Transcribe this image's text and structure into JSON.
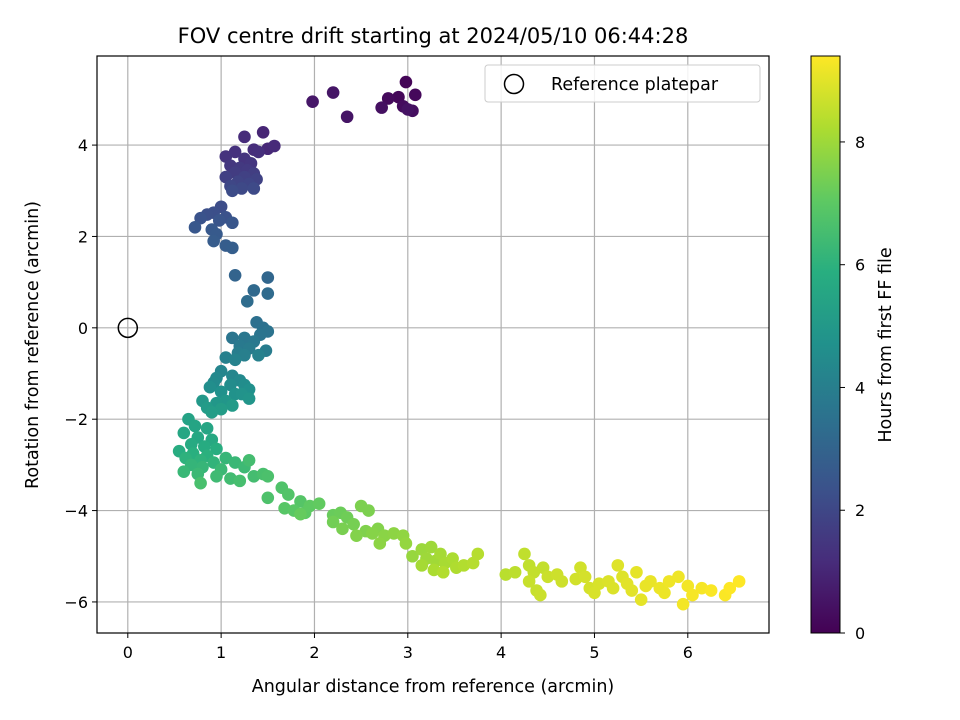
{
  "chart_data": {
    "type": "scatter",
    "title": "FOV centre drift starting at 2024/05/10 06:44:28",
    "xlabel": "Angular distance from reference (arcmin)",
    "ylabel": "Rotation from reference (arcmin)",
    "xlim": [
      -0.33,
      6.87
    ],
    "ylim": [
      -6.68,
      5.95
    ],
    "x_ticks": [
      0,
      1,
      2,
      3,
      4,
      5,
      6
    ],
    "y_ticks": [
      -6,
      -4,
      -2,
      0,
      2,
      4
    ],
    "grid": true,
    "legend": {
      "position": "top-right",
      "entries": [
        "Reference platepar"
      ]
    },
    "reference_point": {
      "x": 0,
      "y": 0
    },
    "colorbar": {
      "label": "Hours from first FF file",
      "colormap": "viridis",
      "range": [
        0,
        9.4
      ],
      "ticks": [
        0,
        2,
        4,
        6,
        8
      ]
    },
    "points": [
      [
        2.98,
        5.38,
        0.1
      ],
      [
        2.9,
        5.05,
        0.15
      ],
      [
        3.08,
        5.1,
        0.2
      ],
      [
        2.79,
        5.02,
        0.25
      ],
      [
        2.95,
        4.85,
        0.3
      ],
      [
        3.05,
        4.75,
        0.35
      ],
      [
        2.72,
        4.82,
        0.4
      ],
      [
        3.0,
        4.78,
        0.45
      ],
      [
        2.35,
        4.62,
        0.5
      ],
      [
        2.2,
        5.15,
        0.55
      ],
      [
        1.98,
        4.95,
        0.6
      ],
      [
        1.45,
        4.28,
        1.0
      ],
      [
        1.5,
        3.92,
        1.05
      ],
      [
        1.57,
        3.98,
        1.1
      ],
      [
        1.25,
        4.18,
        1.15
      ],
      [
        1.35,
        3.9,
        1.2
      ],
      [
        1.4,
        3.85,
        1.25
      ],
      [
        1.15,
        3.85,
        1.3
      ],
      [
        1.05,
        3.75,
        1.35
      ],
      [
        1.25,
        3.7,
        1.4
      ],
      [
        1.32,
        3.6,
        1.45
      ],
      [
        1.1,
        3.55,
        1.5
      ],
      [
        1.2,
        3.5,
        1.55
      ],
      [
        1.28,
        3.45,
        1.6
      ],
      [
        1.15,
        3.4,
        1.65
      ],
      [
        1.35,
        3.38,
        1.7
      ],
      [
        1.05,
        3.3,
        1.75
      ],
      [
        1.25,
        3.3,
        1.8
      ],
      [
        1.38,
        3.25,
        1.85
      ],
      [
        1.18,
        3.2,
        1.9
      ],
      [
        1.3,
        3.15,
        1.95
      ],
      [
        1.1,
        3.1,
        2.0
      ],
      [
        1.22,
        3.05,
        2.05
      ],
      [
        1.35,
        3.05,
        2.1
      ],
      [
        1.12,
        3.0,
        2.15
      ],
      [
        1.0,
        2.65,
        2.2
      ],
      [
        0.92,
        2.52,
        2.25
      ],
      [
        0.85,
        2.48,
        2.3
      ],
      [
        1.05,
        2.42,
        2.35
      ],
      [
        0.78,
        2.4,
        2.4
      ],
      [
        0.98,
        2.35,
        2.45
      ],
      [
        1.12,
        2.3,
        2.5
      ],
      [
        0.72,
        2.2,
        2.55
      ],
      [
        0.9,
        2.15,
        2.6
      ],
      [
        0.95,
        2.05,
        2.65
      ],
      [
        0.92,
        1.9,
        2.7
      ],
      [
        1.05,
        1.8,
        2.75
      ],
      [
        1.12,
        1.75,
        2.8
      ],
      [
        1.15,
        1.15,
        3.0
      ],
      [
        1.5,
        1.1,
        3.1
      ],
      [
        1.35,
        0.82,
        3.2
      ],
      [
        1.5,
        0.75,
        3.25
      ],
      [
        1.28,
        0.58,
        3.3
      ],
      [
        1.38,
        0.12,
        3.45
      ],
      [
        1.45,
        0.0,
        3.5
      ],
      [
        1.5,
        -0.08,
        3.55
      ],
      [
        1.42,
        -0.15,
        3.6
      ],
      [
        1.12,
        -0.22,
        3.65
      ],
      [
        1.25,
        -0.22,
        3.7
      ],
      [
        1.35,
        -0.3,
        3.75
      ],
      [
        1.2,
        -0.4,
        3.8
      ],
      [
        1.3,
        -0.45,
        3.85
      ],
      [
        1.48,
        -0.5,
        3.9
      ],
      [
        1.18,
        -0.55,
        3.95
      ],
      [
        1.25,
        -0.6,
        4.0
      ],
      [
        1.05,
        -0.65,
        4.05
      ],
      [
        1.4,
        -0.6,
        4.1
      ],
      [
        1.15,
        -0.7,
        4.15
      ],
      [
        1.0,
        -0.95,
        4.25
      ],
      [
        1.12,
        -1.05,
        4.3
      ],
      [
        0.95,
        -1.1,
        4.35
      ],
      [
        1.2,
        -1.15,
        4.4
      ],
      [
        0.92,
        -1.2,
        4.45
      ],
      [
        1.1,
        -1.25,
        4.5
      ],
      [
        1.25,
        -1.25,
        4.55
      ],
      [
        0.88,
        -1.3,
        4.6
      ],
      [
        1.3,
        -1.35,
        4.65
      ],
      [
        1.0,
        -1.4,
        4.7
      ],
      [
        1.15,
        -1.45,
        4.75
      ],
      [
        1.22,
        -1.45,
        4.8
      ],
      [
        1.3,
        -1.55,
        4.85
      ],
      [
        1.05,
        -1.6,
        4.9
      ],
      [
        0.95,
        -1.65,
        4.95
      ],
      [
        0.8,
        -1.6,
        5.0
      ],
      [
        1.12,
        -1.7,
        5.05
      ],
      [
        0.85,
        -1.75,
        5.1
      ],
      [
        1.0,
        -1.78,
        5.15
      ],
      [
        0.9,
        -1.85,
        5.2
      ],
      [
        0.65,
        -2.0,
        5.4
      ],
      [
        0.72,
        -2.15,
        5.45
      ],
      [
        0.85,
        -2.2,
        5.5
      ],
      [
        0.6,
        -2.3,
        5.55
      ],
      [
        0.75,
        -2.4,
        5.6
      ],
      [
        0.9,
        -2.45,
        5.65
      ],
      [
        0.68,
        -2.55,
        5.7
      ],
      [
        0.82,
        -2.6,
        5.75
      ],
      [
        0.55,
        -2.7,
        5.8
      ],
      [
        0.95,
        -2.65,
        5.85
      ],
      [
        0.7,
        -2.75,
        5.9
      ],
      [
        0.85,
        -2.8,
        5.95
      ],
      [
        0.62,
        -2.85,
        6.0
      ],
      [
        0.78,
        -2.9,
        6.05
      ],
      [
        0.92,
        -2.95,
        6.1
      ],
      [
        0.68,
        -3.0,
        6.15
      ],
      [
        0.8,
        -3.05,
        6.2
      ],
      [
        0.6,
        -3.15,
        6.25
      ],
      [
        0.75,
        -3.2,
        6.3
      ],
      [
        1.05,
        -2.85,
        6.2
      ],
      [
        1.15,
        -2.95,
        6.25
      ],
      [
        1.0,
        -3.1,
        6.3
      ],
      [
        1.25,
        -3.05,
        6.35
      ],
      [
        0.95,
        -3.25,
        6.4
      ],
      [
        1.1,
        -3.3,
        6.45
      ],
      [
        1.35,
        -3.25,
        6.5
      ],
      [
        1.2,
        -3.35,
        6.55
      ],
      [
        1.45,
        -3.2,
        6.6
      ],
      [
        0.78,
        -3.4,
        6.6
      ],
      [
        1.5,
        -3.25,
        6.65
      ],
      [
        1.3,
        -2.9,
        6.5
      ],
      [
        1.5,
        -3.72,
        6.7
      ],
      [
        1.65,
        -3.5,
        6.75
      ],
      [
        1.72,
        -3.65,
        6.8
      ],
      [
        1.85,
        -3.8,
        6.85
      ],
      [
        1.68,
        -3.95,
        6.9
      ],
      [
        1.78,
        -4.0,
        6.95
      ],
      [
        1.9,
        -4.05,
        7.0
      ],
      [
        1.95,
        -3.9,
        7.05
      ],
      [
        2.05,
        -3.85,
        7.1
      ],
      [
        1.85,
        -4.08,
        7.15
      ],
      [
        2.2,
        -4.1,
        7.2
      ],
      [
        2.28,
        -4.05,
        7.25
      ],
      [
        2.35,
        -4.15,
        7.3
      ],
      [
        2.2,
        -4.25,
        7.35
      ],
      [
        2.42,
        -4.3,
        7.4
      ],
      [
        2.3,
        -4.4,
        7.45
      ],
      [
        2.5,
        -3.9,
        7.5
      ],
      [
        2.58,
        -4.0,
        7.5
      ],
      [
        2.55,
        -4.45,
        7.55
      ],
      [
        2.68,
        -4.4,
        7.6
      ],
      [
        2.45,
        -4.55,
        7.6
      ],
      [
        2.62,
        -4.5,
        7.65
      ],
      [
        2.75,
        -4.55,
        7.7
      ],
      [
        2.85,
        -4.5,
        7.75
      ],
      [
        2.7,
        -4.72,
        7.75
      ],
      [
        2.95,
        -4.55,
        7.8
      ],
      [
        2.98,
        -4.72,
        7.85
      ],
      [
        3.05,
        -5.0,
        7.9
      ],
      [
        3.15,
        -4.85,
        7.95
      ],
      [
        3.25,
        -4.8,
        8.0
      ],
      [
        3.2,
        -5.05,
        8.0
      ],
      [
        3.3,
        -5.1,
        8.05
      ],
      [
        3.35,
        -4.95,
        8.1
      ],
      [
        3.15,
        -5.2,
        8.1
      ],
      [
        3.4,
        -5.15,
        8.15
      ],
      [
        3.28,
        -5.3,
        8.2
      ],
      [
        3.48,
        -5.05,
        8.2
      ],
      [
        3.52,
        -5.25,
        8.25
      ],
      [
        3.6,
        -5.2,
        8.3
      ],
      [
        3.38,
        -5.35,
        8.3
      ],
      [
        3.7,
        -5.15,
        8.35
      ],
      [
        3.75,
        -4.95,
        8.35
      ],
      [
        4.05,
        -5.4,
        8.4
      ],
      [
        4.15,
        -5.35,
        8.45
      ],
      [
        4.25,
        -4.95,
        8.5
      ],
      [
        4.3,
        -5.2,
        8.5
      ],
      [
        4.35,
        -5.35,
        8.55
      ],
      [
        4.45,
        -5.25,
        8.55
      ],
      [
        4.3,
        -5.55,
        8.6
      ],
      [
        4.38,
        -5.75,
        8.6
      ],
      [
        4.42,
        -5.85,
        8.65
      ],
      [
        4.5,
        -5.45,
        8.65
      ],
      [
        4.6,
        -5.4,
        8.7
      ],
      [
        4.65,
        -5.55,
        8.7
      ],
      [
        4.8,
        -5.5,
        8.75
      ],
      [
        4.85,
        -5.25,
        8.75
      ],
      [
        4.9,
        -5.45,
        8.8
      ],
      [
        4.95,
        -5.7,
        8.8
      ],
      [
        5.05,
        -5.6,
        8.85
      ],
      [
        5.0,
        -5.8,
        8.85
      ],
      [
        5.15,
        -5.55,
        8.9
      ],
      [
        5.2,
        -5.7,
        8.9
      ],
      [
        5.25,
        -5.2,
        8.95
      ],
      [
        5.3,
        -5.45,
        8.95
      ],
      [
        5.35,
        -5.6,
        9.0
      ],
      [
        5.4,
        -5.75,
        9.0
      ],
      [
        5.45,
        -5.35,
        9.05
      ],
      [
        5.5,
        -5.95,
        9.05
      ],
      [
        5.55,
        -5.65,
        9.1
      ],
      [
        5.6,
        -5.55,
        9.1
      ],
      [
        5.7,
        -5.7,
        9.15
      ],
      [
        5.75,
        -5.8,
        9.15
      ],
      [
        5.8,
        -5.55,
        9.2
      ],
      [
        5.9,
        -5.45,
        9.2
      ],
      [
        5.95,
        -6.05,
        9.25
      ],
      [
        6.0,
        -5.65,
        9.25
      ],
      [
        6.05,
        -5.85,
        9.3
      ],
      [
        6.15,
        -5.7,
        9.3
      ],
      [
        6.25,
        -5.75,
        9.35
      ],
      [
        6.4,
        -5.85,
        9.35
      ],
      [
        6.45,
        -5.7,
        9.4
      ],
      [
        6.55,
        -5.55,
        9.4
      ]
    ]
  }
}
